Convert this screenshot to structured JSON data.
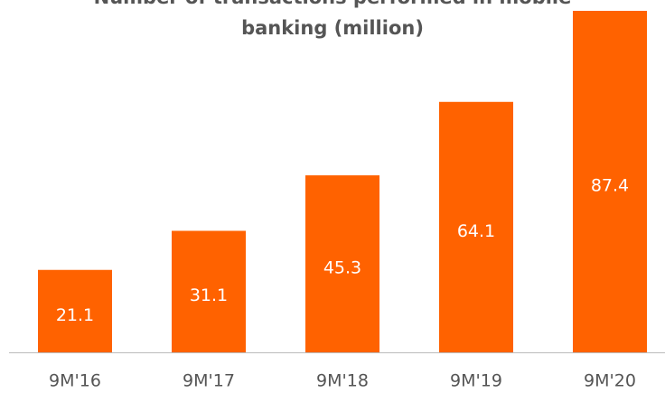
{
  "chart_data": {
    "type": "bar",
    "title_lines": [
      "Number of transactions performed in mobile",
      "banking (million)"
    ],
    "categories": [
      "9M'16",
      "9M'17",
      "9M'18",
      "9M'19",
      "9M'20"
    ],
    "values": [
      21.1,
      31.1,
      45.3,
      64.1,
      87.4
    ],
    "color": "#ff6200",
    "ylim": [
      0,
      87.4
    ]
  }
}
